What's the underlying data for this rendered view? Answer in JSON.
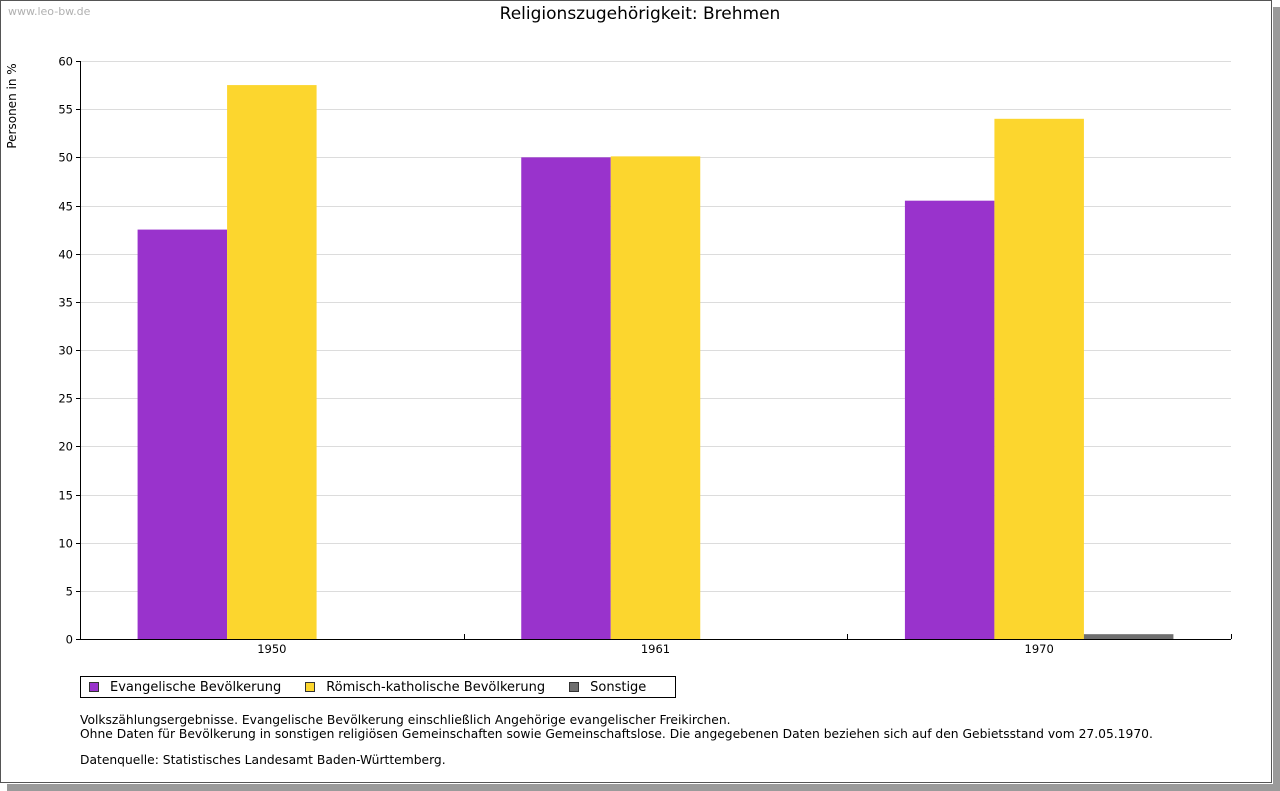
{
  "watermark": "www.leo-bw.de",
  "chart_data": {
    "type": "bar",
    "title": "Religionszugehörigkeit: Brehmen",
    "ylabel": "Personen in %",
    "xlabel": "",
    "ylim": [
      0,
      60
    ],
    "yticks": [
      0,
      5,
      10,
      15,
      20,
      25,
      30,
      35,
      40,
      45,
      50,
      55,
      60
    ],
    "grid": true,
    "legend_position": "bottom",
    "categories": [
      "1950",
      "1961",
      "1970"
    ],
    "series": [
      {
        "name": "Evangelische Bevölkerung",
        "color": "#9933cc",
        "values": [
          42.5,
          50.0,
          45.5
        ]
      },
      {
        "name": "Römisch-katholische Bevölkerung",
        "color": "#fcd62e",
        "values": [
          57.5,
          50.1,
          54.0
        ]
      },
      {
        "name": "Sonstige",
        "color": "#6e6e6e",
        "values": [
          null,
          null,
          0.5
        ]
      }
    ]
  },
  "notes": {
    "line1": "Volkszählungsergebnisse. Evangelische Bevölkerung einschließlich Angehörige evangelischer Freikirchen.",
    "line2": "Ohne Daten für Bevölkerung in sonstigen religiösen Gemeinschaften sowie Gemeinschaftslose. Die angegebenen Daten beziehen sich auf den Gebietsstand vom 27.05.1970.",
    "source": "Datenquelle: Statistisches Landesamt Baden-Württemberg."
  }
}
